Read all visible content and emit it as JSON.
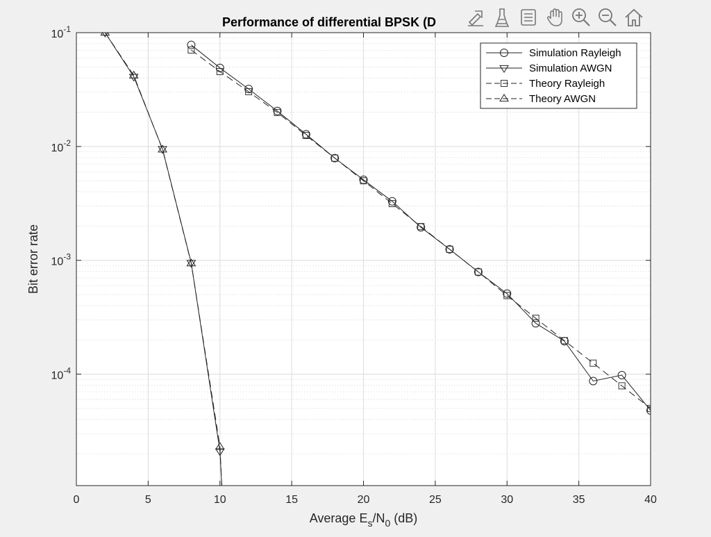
{
  "figure": {
    "background": "#f0f0f0",
    "axes_background": "#ffffff"
  },
  "toolbar": {
    "buttons": [
      {
        "name": "export-icon",
        "label": "Export"
      },
      {
        "name": "brush-icon",
        "label": "Brush"
      },
      {
        "name": "datatip-icon",
        "label": "Data Tips"
      },
      {
        "name": "pan-icon",
        "label": "Pan"
      },
      {
        "name": "zoom-in-icon",
        "label": "Zoom In"
      },
      {
        "name": "zoom-out-icon",
        "label": "Zoom Out"
      },
      {
        "name": "home-icon",
        "label": "Restore View"
      }
    ]
  },
  "chart_data": {
    "type": "line",
    "title": "Performance of differential BPSK (D",
    "xlabel": "Average E_s/N_0 (dB)",
    "xlabel_parts": {
      "pre": "Average E",
      "sub1": "s",
      "mid": "/N",
      "sub2": "0",
      "post": " (dB)"
    },
    "ylabel": "Bit error rate",
    "xlim": [
      0,
      40
    ],
    "ylim": [
      1e-05,
      0.1
    ],
    "ylim_bottom_visible": 1.05e-05,
    "yscale": "log",
    "grid": "on",
    "minor_grid": "on",
    "legend_location": "top-right",
    "xticks": [
      0,
      5,
      10,
      15,
      20,
      25,
      30,
      35,
      40
    ],
    "yticks": [
      {
        "value": 0.1,
        "base": "10",
        "exp": "-1"
      },
      {
        "value": 0.01,
        "base": "10",
        "exp": "-2"
      },
      {
        "value": 0.001,
        "base": "10",
        "exp": "-3"
      },
      {
        "value": 0.0001,
        "base": "10",
        "exp": "-4"
      }
    ],
    "series": [
      {
        "name": "Simulation Rayleigh",
        "marker": "circle",
        "dash": "solid",
        "x": [
          8,
          10,
          12,
          14,
          16,
          18,
          20,
          22,
          24,
          26,
          28,
          30,
          32,
          34,
          36,
          38,
          40
        ],
        "y": [
          0.078,
          0.049,
          0.032,
          0.0205,
          0.0128,
          0.0079,
          0.0051,
          0.0033,
          0.00195,
          0.00125,
          0.00079,
          0.00051,
          0.00028,
          0.000195,
          8.7e-05,
          9.8e-05,
          4.8e-05
        ]
      },
      {
        "name": "Simulation AWGN",
        "marker": "triangle-down",
        "dash": "solid",
        "x": [
          2,
          4,
          6,
          8,
          10
        ],
        "y": [
          0.1,
          0.041,
          0.0095,
          0.00095,
          2.1e-05
        ]
      },
      {
        "name": "Theory Rayleigh",
        "marker": "square",
        "dash": "dashed",
        "x": [
          8,
          10,
          12,
          14,
          16,
          18,
          20,
          22,
          24,
          26,
          28,
          30,
          32,
          34,
          36,
          38,
          40
        ],
        "y": [
          0.0704,
          0.0455,
          0.0303,
          0.0199,
          0.0125,
          0.0079,
          0.005,
          0.00315,
          0.00198,
          0.00125,
          0.00079,
          0.00049,
          0.00031,
          0.000197,
          0.000125,
          7.9e-05,
          5e-05
        ]
      },
      {
        "name": "Theory AWGN",
        "marker": "triangle-up",
        "dash": "dashed",
        "x": [
          2,
          4,
          6,
          8,
          10
        ],
        "y": [
          0.1,
          0.042,
          0.0094,
          0.00094,
          2.3e-05
        ]
      }
    ]
  }
}
